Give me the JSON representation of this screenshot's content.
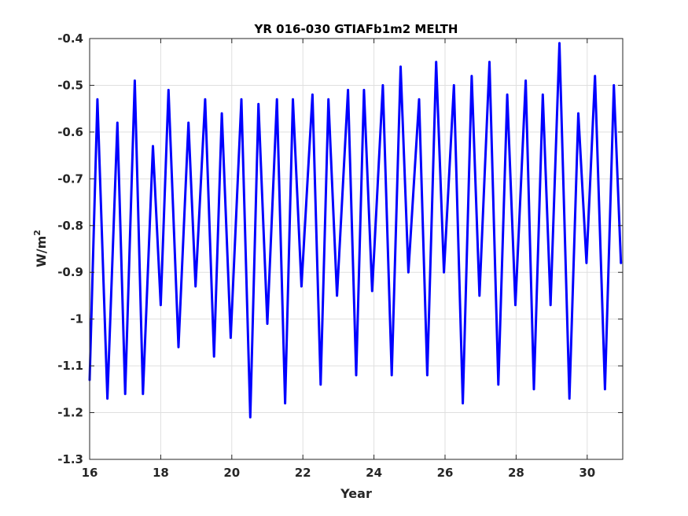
{
  "chart_data": {
    "type": "line",
    "title": "YR 016-030 GTIAFb1m2 MELTH",
    "xlabel": "Year",
    "ylabel_base": "W/m",
    "ylabel_sup": "2",
    "xlim": [
      16,
      31
    ],
    "ylim": [
      -1.3,
      -0.4
    ],
    "xticks": [
      16,
      18,
      20,
      22,
      24,
      26,
      28,
      30
    ],
    "xtick_labels": [
      "16",
      "18",
      "20",
      "22",
      "24",
      "26",
      "28",
      "30"
    ],
    "yticks": [
      -1.3,
      -1.2,
      -1.1,
      -1.0,
      -0.9,
      -0.8,
      -0.7,
      -0.6,
      -0.5,
      -0.4
    ],
    "ytick_labels": [
      "-1.3",
      "-1.2",
      "-1.1",
      "-1",
      "-0.9",
      "-0.8",
      "-0.7",
      "-0.6",
      "-0.5",
      "-0.4"
    ],
    "grid": true,
    "line_color": "#0000ff",
    "series": [
      {
        "x": [
          16.0,
          16.22,
          16.5,
          16.78,
          17.0,
          17.27,
          17.5,
          17.78,
          18.0,
          18.22,
          18.5,
          18.78,
          18.98,
          19.25,
          19.5,
          19.72,
          19.97,
          20.27,
          20.52,
          20.75,
          21.0,
          21.27,
          21.5,
          21.72,
          21.96,
          22.27,
          22.5,
          22.72,
          22.96,
          23.27,
          23.5,
          23.72,
          23.95,
          24.25,
          24.5,
          24.75,
          24.97,
          25.27,
          25.5,
          25.75,
          25.97,
          26.25,
          26.5,
          26.75,
          26.97,
          27.25,
          27.5,
          27.75,
          27.98,
          28.27,
          28.5,
          28.75,
          28.97,
          29.22,
          29.5,
          29.75,
          29.98,
          30.22,
          30.5,
          30.75,
          30.95
        ],
        "values": [
          -1.13,
          -0.53,
          -1.17,
          -0.58,
          -1.16,
          -0.49,
          -1.16,
          -0.63,
          -0.97,
          -0.51,
          -1.06,
          -0.58,
          -0.93,
          -0.53,
          -1.08,
          -0.56,
          -1.04,
          -0.53,
          -1.21,
          -0.54,
          -1.01,
          -0.53,
          -1.18,
          -0.53,
          -0.93,
          -0.52,
          -1.14,
          -0.53,
          -0.95,
          -0.51,
          -1.12,
          -0.51,
          -0.94,
          -0.5,
          -1.12,
          -0.46,
          -0.9,
          -0.53,
          -1.12,
          -0.45,
          -0.9,
          -0.5,
          -1.18,
          -0.48,
          -0.95,
          -0.45,
          -1.14,
          -0.52,
          -0.97,
          -0.49,
          -1.15,
          -0.52,
          -0.97,
          -0.41,
          -1.17,
          -0.56,
          -0.88,
          -0.48,
          -1.15,
          -0.5,
          -0.88
        ]
      }
    ]
  }
}
